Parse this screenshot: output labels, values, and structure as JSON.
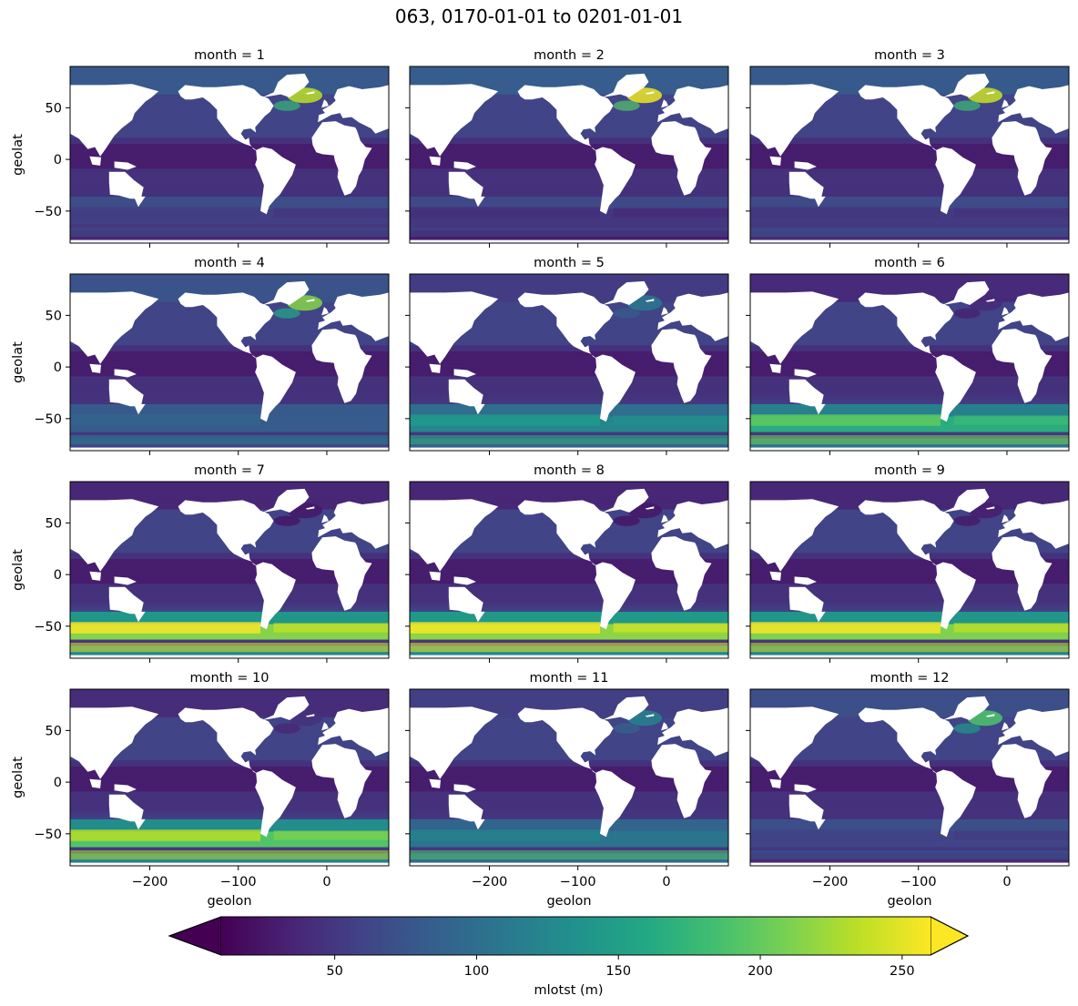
{
  "figure": {
    "title": "063, 0170-01-01 to 0201-01-01"
  },
  "chart_data": {
    "type": "heatmap",
    "title": "063, 0170-01-01 to 0201-01-01",
    "variable": "mlotst (m)",
    "colormap": "viridis",
    "colorbar": {
      "label": "mlotst (m)",
      "ticks": [
        50,
        100,
        150,
        200,
        250
      ],
      "range": [
        10,
        260
      ],
      "extend": "both",
      "orientation": "horizontal",
      "position": "bottom"
    },
    "xlabel": "geolon",
    "ylabel": "geolat",
    "xlim": [
      -290,
      70
    ],
    "ylim": [
      -81,
      90
    ],
    "xticks": [
      -200,
      -100,
      0
    ],
    "yticks": [
      -50,
      0,
      50
    ],
    "xtick_labels": [
      "−200",
      "−100",
      "0"
    ],
    "ytick_labels": [
      "−50",
      "0",
      "50"
    ],
    "land_color": "#ffffff",
    "panels": [
      {
        "title": "month = 1",
        "north_atlantic": 235,
        "southern_ocean": 55,
        "antarctic_coast": 70
      },
      {
        "title": "month = 2",
        "north_atlantic": 255,
        "southern_ocean": 45,
        "antarctic_coast": 60
      },
      {
        "title": "month = 3",
        "north_atlantic": 240,
        "southern_ocean": 50,
        "antarctic_coast": 80
      },
      {
        "title": "month = 4",
        "north_atlantic": 215,
        "southern_ocean": 90,
        "antarctic_coast": 120
      },
      {
        "title": "month = 5",
        "north_atlantic": 110,
        "southern_ocean": 145,
        "antarctic_coast": 170
      },
      {
        "title": "month = 6",
        "north_atlantic": 40,
        "southern_ocean": 200,
        "antarctic_coast": 210
      },
      {
        "title": "month = 7",
        "north_atlantic": 25,
        "southern_ocean": 265,
        "antarctic_coast": 250
      },
      {
        "title": "month = 8",
        "north_atlantic": 25,
        "southern_ocean": 270,
        "antarctic_coast": 255
      },
      {
        "title": "month = 9",
        "north_atlantic": 30,
        "southern_ocean": 262,
        "antarctic_coast": 240
      },
      {
        "title": "month = 10",
        "north_atlantic": 45,
        "southern_ocean": 235,
        "antarctic_coast": 230
      },
      {
        "title": "month = 11",
        "north_atlantic": 120,
        "southern_ocean": 120,
        "antarctic_coast": 190
      },
      {
        "title": "month = 12",
        "north_atlantic": 190,
        "southern_ocean": 60,
        "antarctic_coast": 80
      }
    ]
  }
}
